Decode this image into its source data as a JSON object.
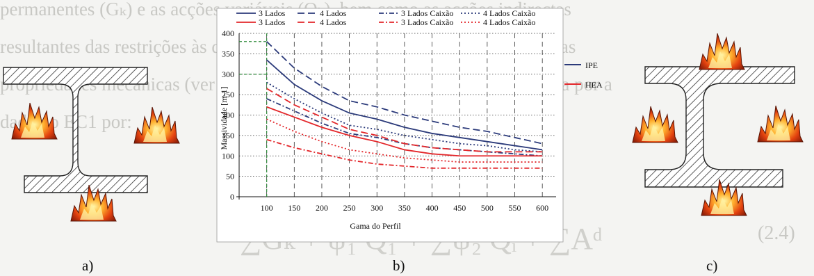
{
  "background_text": {
    "lines": [
      "permanentes (Gₖ) e as acções variáveis (Qₖ), bem como as acções indirectas",
      "resultantes das restrições às dilatações térmicas e o efeito da temperatura nas",
      "propriedades mecânicas (ver 2.2.1). A combinação de acção acidente é dada por a",
      "dada no EC1 por:"
    ],
    "formula": "∑Gₖ + ψ₁ Q₁ + ∑ψ₂ Qᵢ + ∑Aᵈ",
    "eq_number": "(2.4)"
  },
  "figure_labels": {
    "a": "a)",
    "b": "b)",
    "c": "c)"
  },
  "chart_data": {
    "type": "line",
    "title": "",
    "xlabel": "Gama do Perfil",
    "ylabel": "Massividade [m-1]",
    "xlim": [
      50,
      625
    ],
    "ylim": [
      0,
      400
    ],
    "x_ticks": [
      100,
      150,
      200,
      250,
      300,
      350,
      400,
      450,
      500,
      550,
      600
    ],
    "y_ticks": [
      0,
      50,
      100,
      150,
      200,
      250,
      300,
      350,
      400
    ],
    "grid": true,
    "legend_position": "top",
    "profile_labels": [
      "IPE",
      "HEA"
    ],
    "colors": {
      "IPE": "#2b3a7a",
      "HEA": "#e3262a"
    },
    "x": [
      100,
      150,
      200,
      250,
      300,
      350,
      400,
      450,
      500,
      550,
      600
    ],
    "series": [
      {
        "name": "3 Lados",
        "profile": "IPE",
        "style": "solid",
        "values": [
          335,
          275,
          235,
          205,
          190,
          170,
          155,
          145,
          135,
          125,
          115
        ]
      },
      {
        "name": "4 Lados",
        "profile": "IPE",
        "style": "dashed",
        "values": [
          380,
          315,
          270,
          235,
          220,
          200,
          185,
          170,
          160,
          145,
          130
        ]
      },
      {
        "name": "3 Lados Caixão",
        "profile": "IPE",
        "style": "dashdot",
        "values": [
          240,
          210,
          180,
          155,
          145,
          130,
          120,
          115,
          110,
          105,
          100
        ]
      },
      {
        "name": "4 Lados Caixão",
        "profile": "IPE",
        "style": "dotted",
        "values": [
          280,
          240,
          205,
          175,
          165,
          150,
          140,
          130,
          125,
          115,
          110
        ]
      },
      {
        "name": "3 Lados",
        "profile": "HEA",
        "style": "solid",
        "values": [
          220,
          195,
          170,
          150,
          135,
          115,
          105,
          100,
          100,
          100,
          100
        ]
      },
      {
        "name": "4 Lados",
        "profile": "HEA",
        "style": "dashed",
        "values": [
          265,
          225,
          195,
          165,
          150,
          130,
          120,
          115,
          110,
          110,
          110
        ]
      },
      {
        "name": "3 Lados Caixão",
        "profile": "HEA",
        "style": "dashdot",
        "values": [
          140,
          120,
          105,
          90,
          80,
          75,
          70,
          70,
          70,
          70,
          70
        ]
      },
      {
        "name": "4 Lados Caixão",
        "profile": "HEA",
        "style": "dotted",
        "values": [
          190,
          160,
          135,
          115,
          105,
          95,
          90,
          85,
          85,
          85,
          85
        ]
      }
    ],
    "reference_lines": [
      {
        "y": 380,
        "from_x": 50,
        "to_x": 100
      },
      {
        "y": 300,
        "from_x": 50,
        "to_x": 100
      },
      {
        "x": 100,
        "from_y": 0,
        "to_y": 400
      }
    ]
  }
}
